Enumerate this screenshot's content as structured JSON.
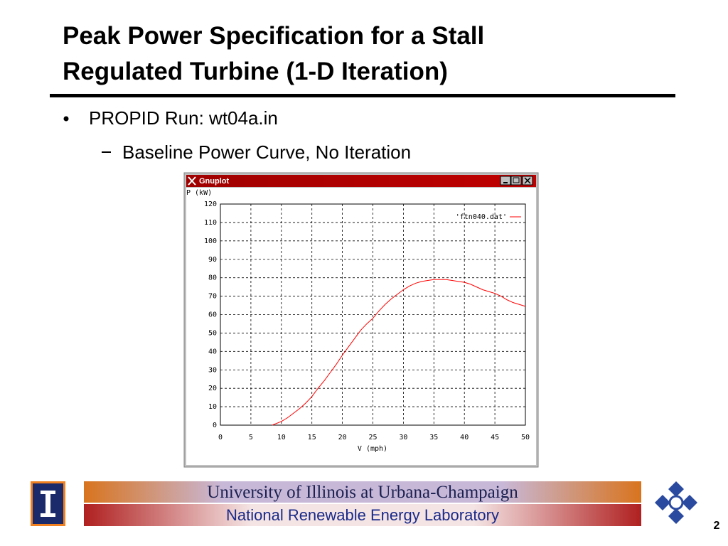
{
  "slide": {
    "title_lines": [
      "Peak Power Specification for a Stall",
      "Regulated Turbine (1-D Iteration)"
    ],
    "bullet": "PROPID Run: wt04a.in",
    "sub_bullet": "Baseline Power Curve, No Iteration"
  },
  "window": {
    "title": "Gnuplot"
  },
  "chart_data": {
    "type": "line",
    "ylabel": "P (kW)",
    "xlabel": "V (mph)",
    "x": [
      8.5,
      10,
      11,
      12,
      13,
      14,
      15,
      16,
      17,
      18,
      19,
      20,
      21,
      22,
      23,
      24,
      25,
      26,
      27,
      28,
      29,
      30,
      31,
      32,
      33,
      34,
      35,
      36,
      37,
      38,
      39,
      40,
      41,
      42,
      43,
      44,
      45,
      46,
      47,
      48,
      49,
      50
    ],
    "series": [
      {
        "name": "'ftn040.dat'",
        "color": "#ff0000",
        "values": [
          0,
          2,
          4,
          6.5,
          9,
          12,
          15.5,
          20,
          24,
          28.5,
          33,
          38,
          42.5,
          47,
          51.5,
          55,
          58,
          62,
          65.5,
          68.5,
          71,
          73.5,
          75.5,
          77,
          78,
          78.5,
          79,
          79,
          79,
          78.5,
          78,
          77.5,
          76.5,
          75,
          73.5,
          72.5,
          71.5,
          70,
          68,
          66.5,
          65.5,
          64.5
        ]
      }
    ],
    "xlim": [
      0,
      50
    ],
    "ylim": [
      0,
      120
    ],
    "xticks": [
      0,
      5,
      10,
      15,
      20,
      25,
      30,
      35,
      40,
      45,
      50
    ],
    "yticks": [
      0,
      10,
      20,
      30,
      40,
      50,
      60,
      70,
      80,
      90,
      100,
      110,
      120
    ],
    "grid": true,
    "legend": "top-right"
  },
  "footer": {
    "university": "University of Illinois at Urbana-Champaign",
    "lab": "National Renewable Energy Laboratory",
    "page": "2"
  }
}
